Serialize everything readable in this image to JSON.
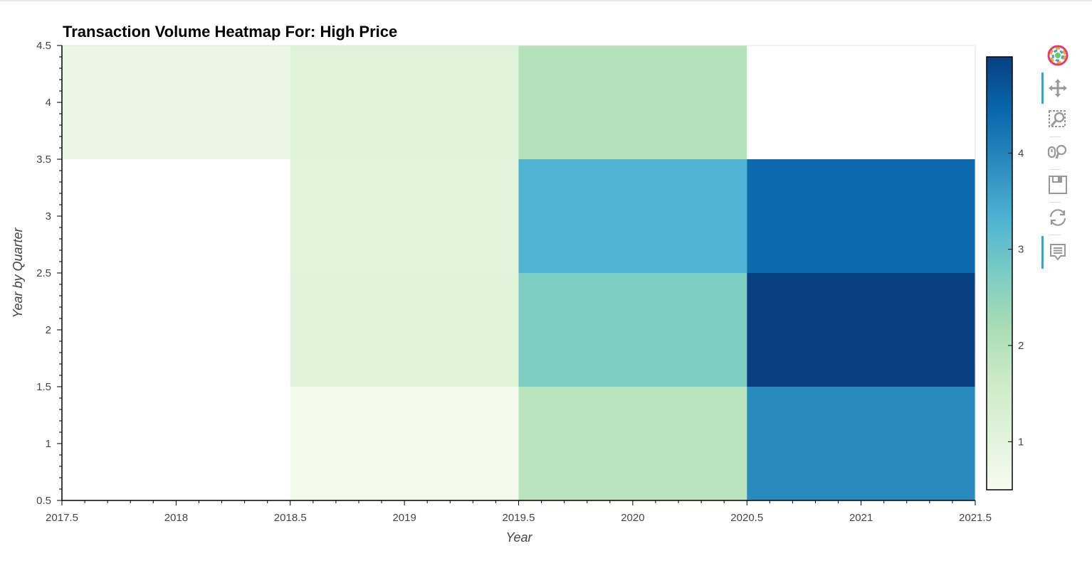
{
  "chart_data": {
    "type": "heatmap",
    "title": "Transaction Volume Heatmap For: High Price",
    "xlabel": "Year",
    "ylabel": "Year by Quarter",
    "xlim": [
      2017.5,
      2021.5
    ],
    "ylim": [
      0.5,
      4.5
    ],
    "x_ticks": [
      "2017.5",
      "2018",
      "2018.5",
      "2019",
      "2019.5",
      "2020",
      "2020.5",
      "2021",
      "2021.5"
    ],
    "y_ticks": [
      "0.5",
      "1",
      "1.5",
      "2",
      "2.5",
      "3",
      "3.5",
      "4",
      "4.5"
    ],
    "cells": [
      {
        "x": 2018,
        "y": 4,
        "value": 0.8
      },
      {
        "x": 2019,
        "y": 1,
        "value": 0.6
      },
      {
        "x": 2019,
        "y": 2,
        "value": 1.1
      },
      {
        "x": 2019,
        "y": 3,
        "value": 1.0
      },
      {
        "x": 2019,
        "y": 4,
        "value": 1.1
      },
      {
        "x": 2020,
        "y": 1,
        "value": 1.9
      },
      {
        "x": 2020,
        "y": 2,
        "value": 2.7
      },
      {
        "x": 2020,
        "y": 3,
        "value": 3.3
      },
      {
        "x": 2020,
        "y": 4,
        "value": 2.0
      },
      {
        "x": 2021,
        "y": 1,
        "value": 3.9
      },
      {
        "x": 2021,
        "y": 2,
        "value": 5.0
      },
      {
        "x": 2021,
        "y": 3,
        "value": 4.4
      }
    ],
    "colorbar": {
      "range": [
        0.5,
        5.0
      ],
      "ticks": [
        "1",
        "2",
        "3",
        "4"
      ],
      "palette": [
        "#f7fcf0",
        "#e0f3db",
        "#ccebc5",
        "#a8ddb5",
        "#7bccc4",
        "#4eb3d3",
        "#2b8cbe",
        "#0868ac",
        "#084081"
      ]
    },
    "grid": false,
    "legend": "colorbar-right"
  },
  "toolbar": {
    "logo": "bokeh-logo-icon",
    "tools": [
      "pan-icon",
      "box-zoom-icon",
      "wheel-zoom-icon",
      "save-icon",
      "reset-icon",
      "hover-icon"
    ]
  }
}
